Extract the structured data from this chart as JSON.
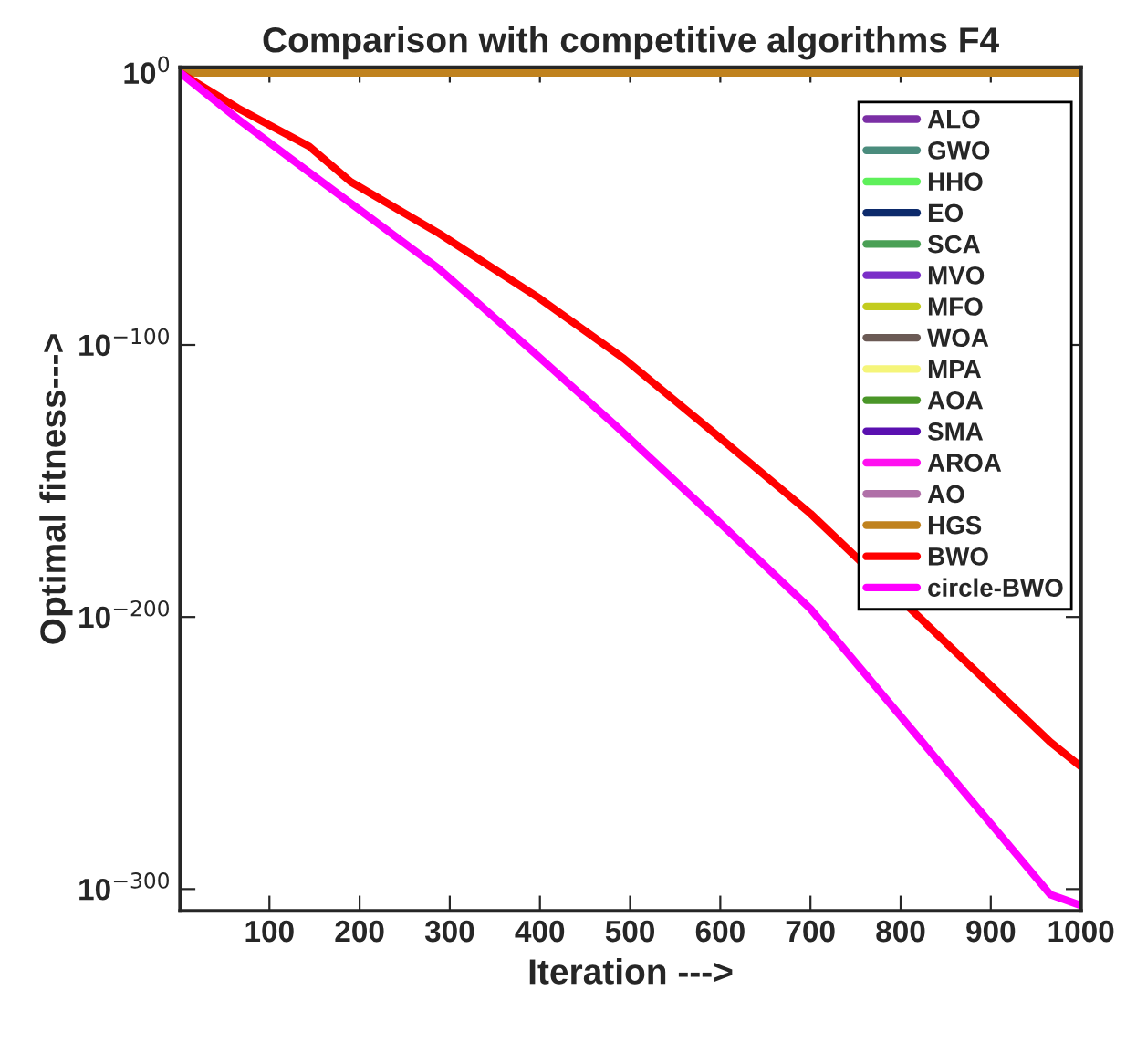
{
  "chart_data": {
    "type": "line",
    "title": "Comparison with competitive algorithms F4",
    "xlabel": "Iteration --->",
    "ylabel": "Optimal fitness--->",
    "log": "y",
    "grid": false,
    "legend": "right",
    "line_style": "solid",
    "marker": "none",
    "xlim": [
      1,
      1000
    ],
    "xticks": [
      100,
      200,
      300,
      400,
      500,
      600,
      700,
      800,
      900,
      1000
    ],
    "ylim": [
      1e-308,
      100.0
    ],
    "yticks": [
      {
        "value": 1e-300,
        "label": "10$^{−300}$"
      },
      {
        "value": 1e-200,
        "label": "10$^{−200}$"
      },
      {
        "value": 1e-100,
        "label": "10$^{−100}$"
      },
      {
        "value": 1,
        "label": "10$^{0}$"
      }
    ],
    "x": [
      1,
      1000
    ],
    "series": [
      {
        "name": "ALO",
        "color": "#7b2fa5",
        "values": [
          null,
          null
        ]
      },
      {
        "name": "GWO",
        "color": "#4a8c7d",
        "values": [
          null,
          null
        ]
      },
      {
        "name": "HHO",
        "color": "#5ef05a",
        "values": [
          null,
          null
        ]
      },
      {
        "name": "EO",
        "color": "#0c2a6b",
        "values": [
          null,
          null
        ]
      },
      {
        "name": "SCA",
        "color": "#4aa055",
        "values": [
          null,
          null
        ]
      },
      {
        "name": "MVO",
        "color": "#7b2fc8",
        "values": [
          null,
          null
        ]
      },
      {
        "name": "MFO",
        "color": "#c3cc1e",
        "values": [
          null,
          null
        ]
      },
      {
        "name": "WOA",
        "color": "#6b5a55",
        "values": [
          null,
          null
        ]
      },
      {
        "name": "MPA",
        "color": "#f5f57a",
        "values": [
          null,
          null
        ]
      },
      {
        "name": "AOA",
        "color": "#4a9628",
        "values": [
          null,
          null
        ]
      },
      {
        "name": "SMA",
        "color": "#5a10b0",
        "values": [
          null,
          null
        ]
      },
      {
        "name": "AROA",
        "color": "#ff10f0",
        "values": [
          null,
          null
        ]
      },
      {
        "name": "AO",
        "color": "#b070a8",
        "values": [
          null,
          null
        ]
      },
      {
        "name": "HGS",
        "color": "#c0821e",
        "values": [
          1,
          1
        ]
      },
      {
        "name": "BWO",
        "color": "#ff0000",
        "x": [
          1,
          65,
          144,
          190,
          288,
          400,
          493,
          592,
          700,
          966,
          1000
        ],
        "values": [
          1,
          1e-13,
          1e-27,
          1e-40,
          1e-59,
          1e-83,
          1e-105,
          1e-132,
          1e-162,
          1e-246,
          1e-255
        ]
      },
      {
        "name": "circle-BWO",
        "color": "#ff00ff",
        "x": [
          1,
          65,
          158,
          288,
          394,
          485,
          592,
          700,
          966,
          1000
        ],
        "values": [
          1,
          1e-17,
          1e-40,
          1e-72,
          1e-103,
          1e-130,
          1e-163,
          1e-197,
          1e-302,
          1e-306
        ]
      }
    ]
  }
}
